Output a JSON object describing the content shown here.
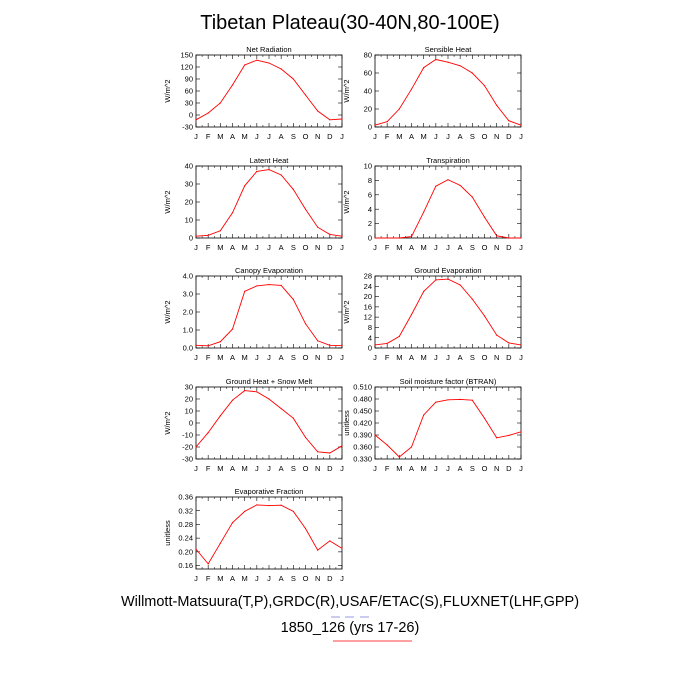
{
  "title": "Tibetan Plateau(30-40N,80-100E)",
  "footer_line1": "Willmott-Matsuura(T,P),GRDC(R),USAF/ETAC(S),FLUXNET(LHF,GPP)",
  "footer_line2": "1850_126 (yrs 17-26)",
  "colors": {
    "line": "#ff0000",
    "frame": "#000000",
    "footer_underline": "#ff0000"
  },
  "chart_data": [
    {
      "type": "line",
      "title": "Net Radiation",
      "ylabel": "W/m^2",
      "categories": [
        "J",
        "F",
        "M",
        "A",
        "M",
        "J",
        "J",
        "A",
        "S",
        "O",
        "N",
        "D",
        "J"
      ],
      "yticks": [
        "150",
        "120",
        "90",
        "60",
        "30",
        "0",
        "-30"
      ],
      "ylim": [
        -30,
        150
      ],
      "values": [
        -12,
        5,
        30,
        75,
        125,
        137,
        130,
        115,
        90,
        50,
        10,
        -12,
        -10
      ]
    },
    {
      "type": "line",
      "title": "Sensible Heat",
      "ylabel": "W/m^2",
      "categories": [
        "J",
        "F",
        "M",
        "A",
        "M",
        "J",
        "J",
        "A",
        "S",
        "O",
        "N",
        "D",
        "J"
      ],
      "yticks": [
        "80",
        "60",
        "40",
        "20",
        "0"
      ],
      "ylim": [
        0,
        80
      ],
      "values": [
        2,
        6,
        20,
        42,
        66,
        75,
        72,
        68,
        60,
        46,
        24,
        7,
        2
      ]
    },
    {
      "type": "line",
      "title": "Latent Heat",
      "ylabel": "W/m^2",
      "categories": [
        "J",
        "F",
        "M",
        "A",
        "M",
        "J",
        "J",
        "A",
        "S",
        "O",
        "N",
        "D",
        "J"
      ],
      "yticks": [
        "40",
        "30",
        "20",
        "10",
        "0"
      ],
      "ylim": [
        0,
        40
      ],
      "values": [
        1,
        1.5,
        4,
        14,
        29,
        37,
        38,
        35,
        27,
        16,
        6,
        2,
        1
      ]
    },
    {
      "type": "line",
      "title": "Transpiration",
      "ylabel": "W/m^2",
      "categories": [
        "J",
        "F",
        "M",
        "A",
        "M",
        "J",
        "J",
        "A",
        "S",
        "O",
        "N",
        "D",
        "J"
      ],
      "yticks": [
        "10",
        "8",
        "6",
        "4",
        "2",
        "0"
      ],
      "ylim": [
        0,
        10
      ],
      "values": [
        0,
        0,
        0,
        0.2,
        3.6,
        7.2,
        8.1,
        7.3,
        5.7,
        2.9,
        0.3,
        0,
        0
      ]
    },
    {
      "type": "line",
      "title": "Canopy Evaporation",
      "ylabel": "W/m^2",
      "categories": [
        "J",
        "F",
        "M",
        "A",
        "M",
        "J",
        "J",
        "A",
        "S",
        "O",
        "N",
        "D",
        "J"
      ],
      "yticks": [
        "4.0",
        "3.0",
        "2.0",
        "1.0",
        "0.0"
      ],
      "ylim": [
        0,
        4
      ],
      "values": [
        0.15,
        0.12,
        0.35,
        1.05,
        3.15,
        3.45,
        3.52,
        3.48,
        2.7,
        1.35,
        0.4,
        0.15,
        0.13
      ]
    },
    {
      "type": "line",
      "title": "Ground Evaporation",
      "ylabel": "W/m^2",
      "categories": [
        "J",
        "F",
        "M",
        "A",
        "M",
        "J",
        "J",
        "A",
        "S",
        "O",
        "N",
        "D",
        "J"
      ],
      "yticks": [
        "28",
        "24",
        "20",
        "16",
        "12",
        "8",
        "4",
        "0"
      ],
      "ylim": [
        0,
        28
      ],
      "values": [
        1.2,
        1.8,
        4.5,
        13,
        22,
        26.5,
        26.8,
        24.5,
        19,
        12.5,
        5,
        2,
        1.2
      ]
    },
    {
      "type": "line",
      "title": "Ground Heat + Snow Melt",
      "ylabel": "W/m^2",
      "categories": [
        "J",
        "F",
        "M",
        "A",
        "M",
        "J",
        "J",
        "A",
        "S",
        "O",
        "N",
        "D",
        "J"
      ],
      "yticks": [
        "30",
        "20",
        "10",
        "0",
        "-10",
        "-20",
        "-30"
      ],
      "ylim": [
        -30,
        30
      ],
      "values": [
        -20,
        -8,
        6,
        19,
        27,
        26,
        20,
        12,
        4,
        -12,
        -24,
        -25,
        -19
      ]
    },
    {
      "type": "line",
      "title": "Soil moisture factor (BTRAN)",
      "ylabel": "unitless",
      "categories": [
        "J",
        "F",
        "M",
        "A",
        "M",
        "J",
        "J",
        "A",
        "S",
        "O",
        "N",
        "D",
        "J"
      ],
      "yticks": [
        "0.510",
        "0.480",
        "0.450",
        "0.420",
        "0.390",
        "0.360",
        "0.330"
      ],
      "ylim": [
        0.33,
        0.51
      ],
      "values": [
        0.39,
        0.365,
        0.335,
        0.36,
        0.44,
        0.472,
        0.478,
        0.479,
        0.477,
        0.432,
        0.383,
        0.389,
        0.398
      ]
    },
    {
      "type": "line",
      "title": "Evaporative Fraction",
      "ylabel": "unitless",
      "categories": [
        "J",
        "F",
        "M",
        "A",
        "M",
        "J",
        "J",
        "A",
        "S",
        "O",
        "N",
        "D",
        "J"
      ],
      "yticks": [
        "0.36",
        "0.32",
        "0.28",
        "0.24",
        "0.20",
        "0.16"
      ],
      "ylim": [
        0.15,
        0.36
      ],
      "values": [
        0.208,
        0.165,
        0.225,
        0.285,
        0.318,
        0.337,
        0.335,
        0.336,
        0.318,
        0.268,
        0.205,
        0.232,
        0.21
      ]
    }
  ]
}
